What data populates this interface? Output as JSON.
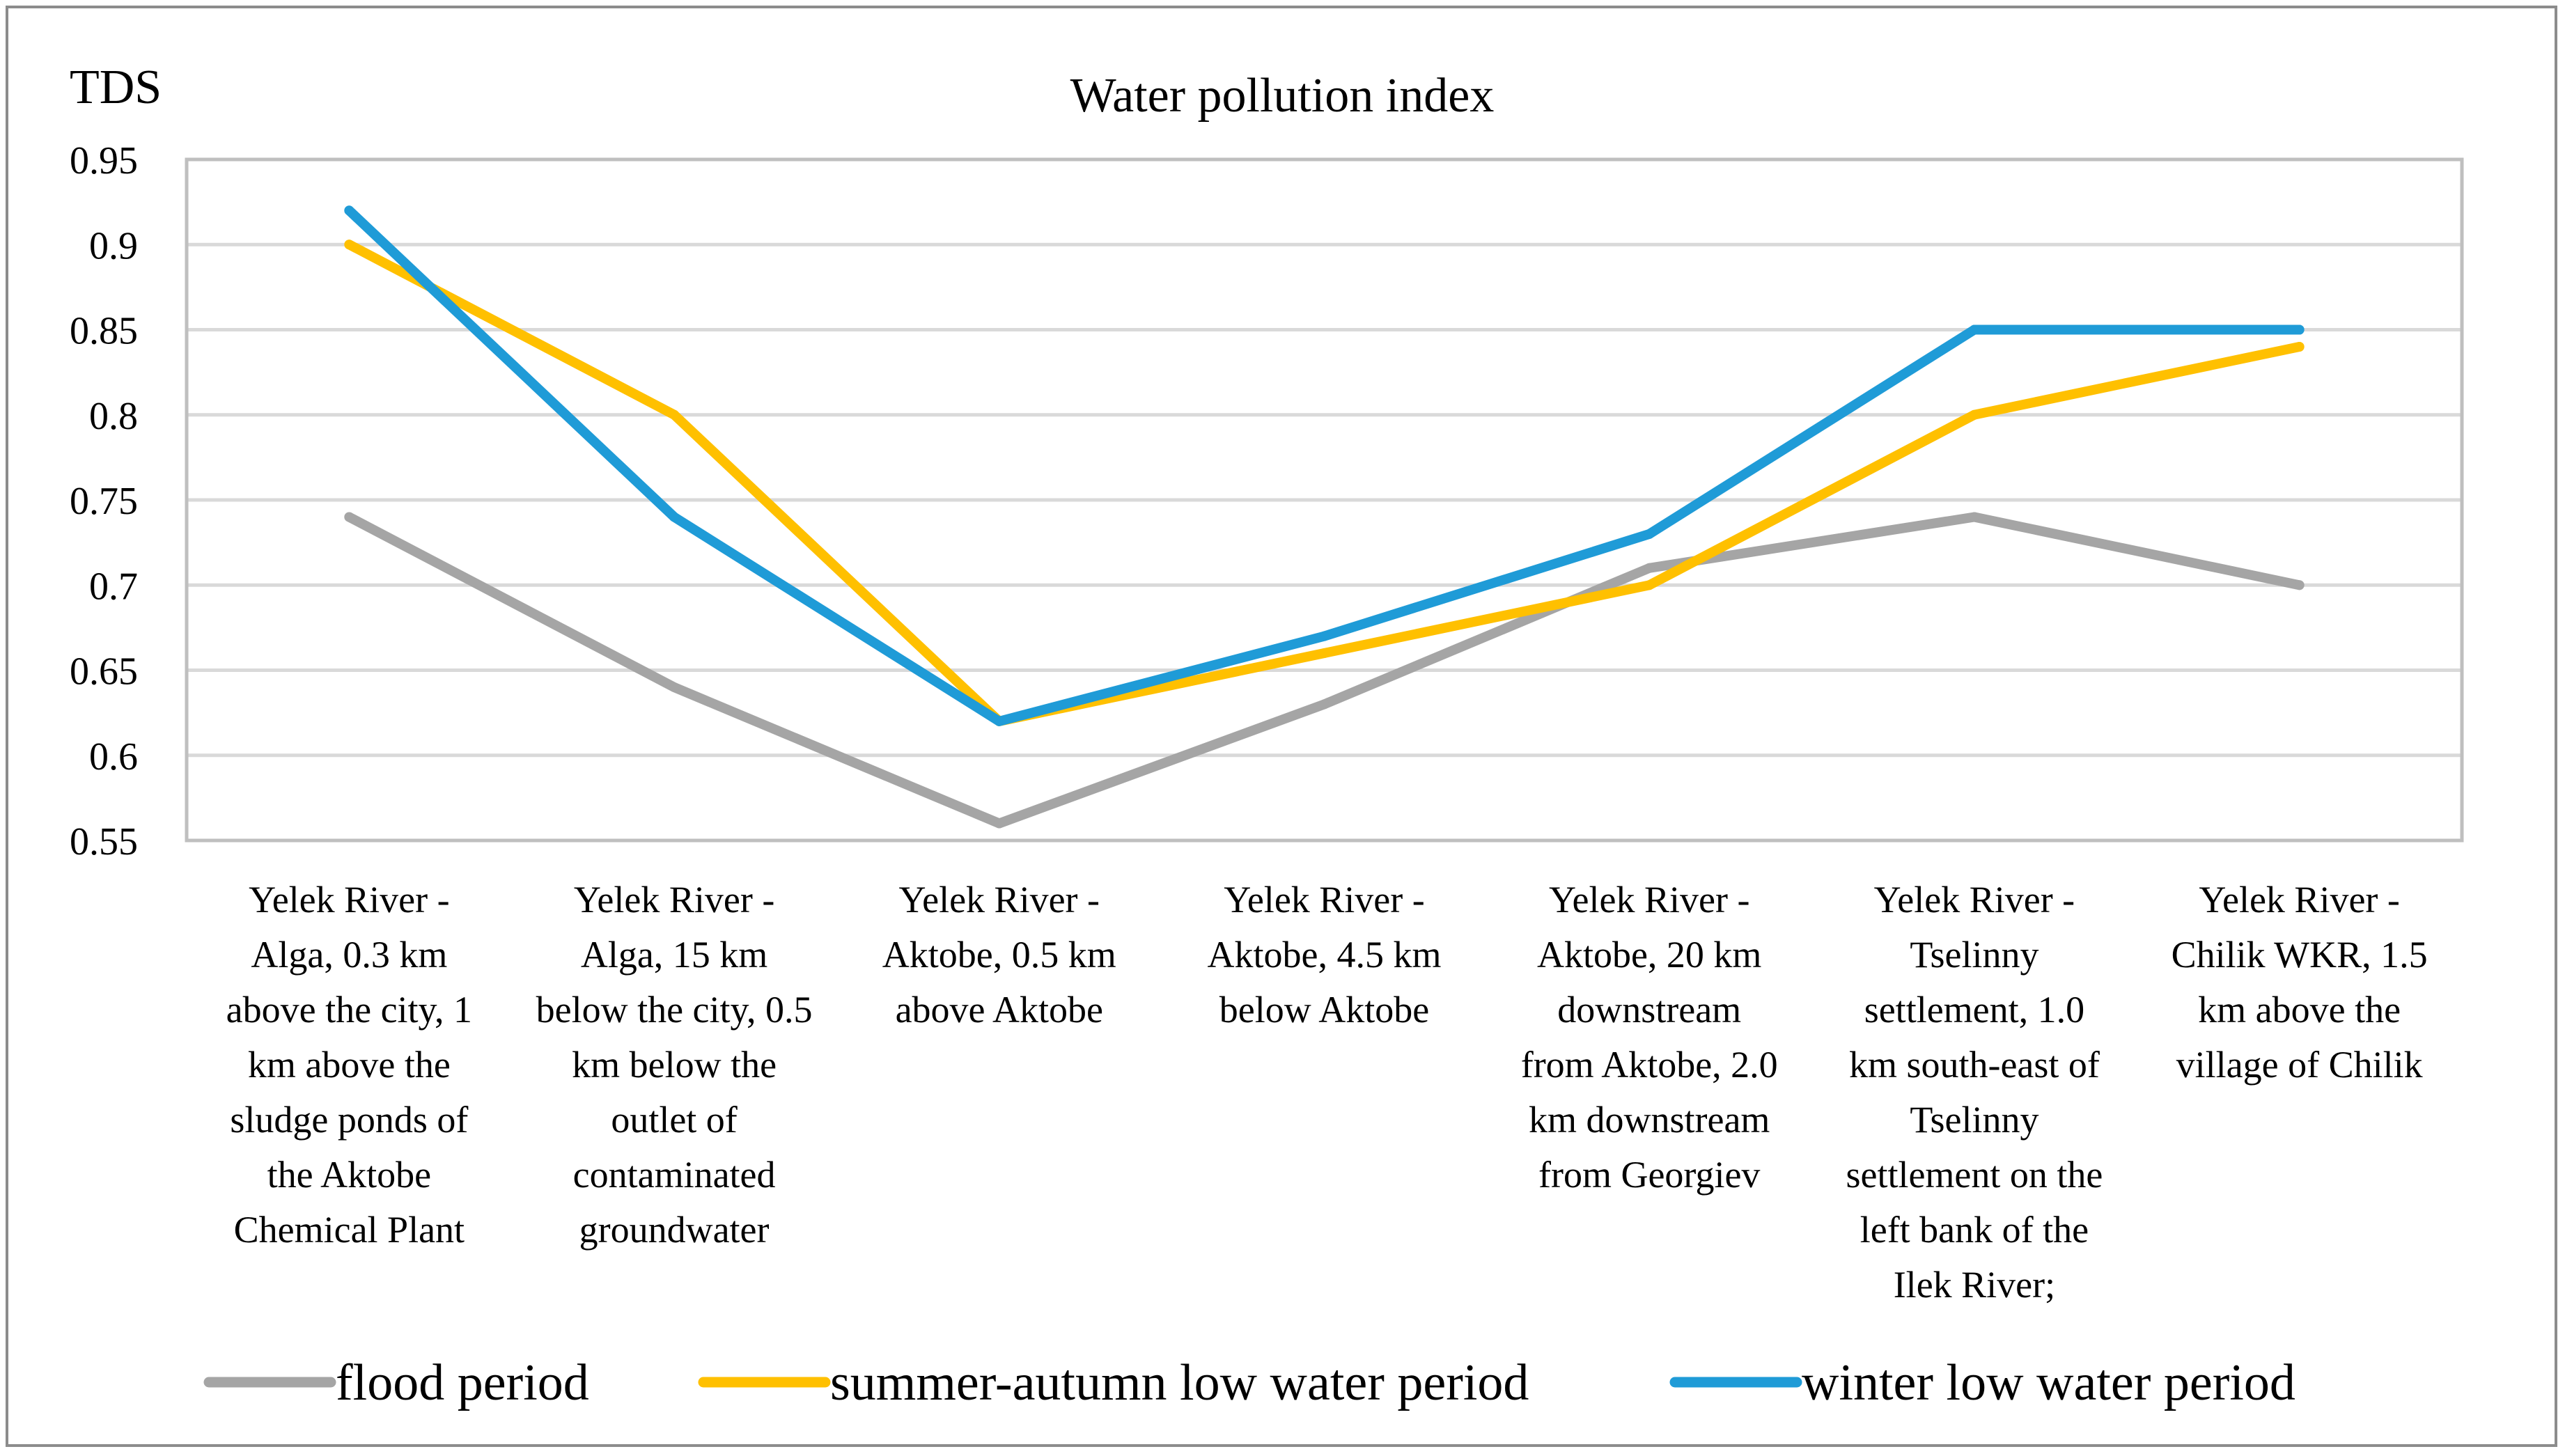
{
  "chart_data": {
    "type": "line",
    "title": "Water pollution index",
    "ylabel": "TDS",
    "xlabel": "",
    "ylim": [
      0.55,
      0.95
    ],
    "yticks": [
      "0.55",
      "0.6",
      "0.65",
      "0.7",
      "0.75",
      "0.8",
      "0.85",
      "0.9",
      "0.95"
    ],
    "grid": true,
    "legend_position": "bottom",
    "categories": [
      [
        "Yelek River -",
        "Alga, 0.3 km",
        "above the city, 1",
        "km above the",
        "sludge ponds of",
        "the Aktobe",
        "Chemical Plant"
      ],
      [
        "Yelek River -",
        "Alga, 15 km",
        "below the city, 0.5",
        "km below the",
        "outlet of",
        "contaminated",
        "groundwater"
      ],
      [
        "Yelek River -",
        "Aktobe, 0.5 km",
        "above Aktobe"
      ],
      [
        "Yelek River -",
        "Aktobe, 4.5 km",
        "below Aktobe"
      ],
      [
        "Yelek River -",
        "Aktobe, 20 km",
        "downstream",
        "from Aktobe, 2.0",
        "km downstream",
        "from Georgiev"
      ],
      [
        "Yelek River -",
        "Tselinny",
        "settlement, 1.0",
        "km south-east of",
        "Tselinny",
        "settlement on the",
        "left bank of the",
        "Ilek River;"
      ],
      [
        "Yelek River -",
        "Chilik WKR, 1.5",
        "km above the",
        "village of Chilik"
      ]
    ],
    "series": [
      {
        "name": "flood period",
        "color": "#A5A5A5",
        "values": [
          0.74,
          0.64,
          0.56,
          0.63,
          0.71,
          0.74,
          0.7
        ]
      },
      {
        "name": "summer-autumn low water period",
        "color": "#FFC000",
        "values": [
          0.9,
          0.8,
          0.62,
          0.66,
          0.7,
          0.8,
          0.84
        ]
      },
      {
        "name": "winter low water period",
        "color": "#1F9BD7",
        "values": [
          0.92,
          0.74,
          0.62,
          0.67,
          0.73,
          0.85,
          0.85
        ]
      }
    ]
  }
}
